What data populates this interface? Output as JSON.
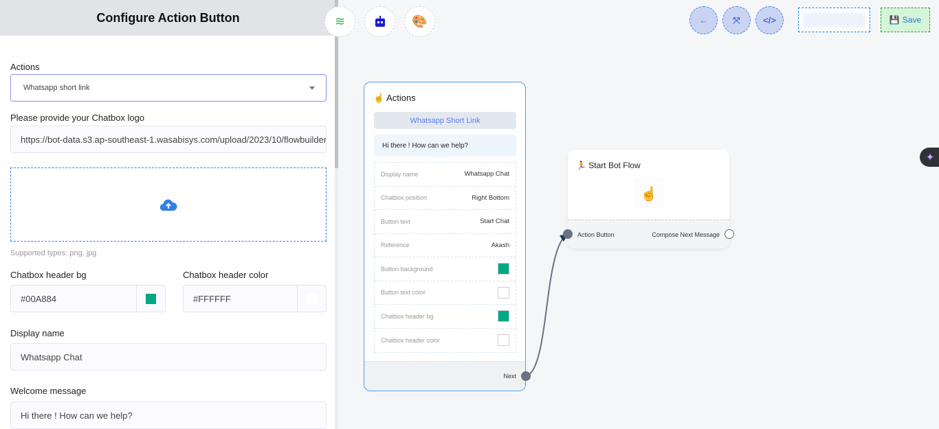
{
  "panel": {
    "title": "Configure Action Button",
    "actions_label": "Actions",
    "actions_value": "Whatsapp short link",
    "logo_label": "Please provide your Chatbox logo",
    "logo_value": "https://bot-data.s3.ap-southeast-1.wasabisys.com/upload/2023/10/flowbuilder",
    "supported": "Supported types: png, jpg",
    "header_bg_label": "Chatbox header bg",
    "header_bg_value": "#00A884",
    "header_color_label": "Chatbox header color",
    "header_color_value": "#FFFFFF",
    "display_name_label": "Display name",
    "display_name_value": "Whatsapp Chat",
    "welcome_label": "Welcome message",
    "welcome_value": "Hi there ! How can we help?"
  },
  "toolbar": {
    "save_label": "Save",
    "icons": [
      "lines-icon",
      "robot-icon",
      "palette-icon",
      "arrow-left-icon",
      "compress-icon",
      "code-icon"
    ]
  },
  "action_node": {
    "title": "Actions",
    "badge": "Whatsapp Short Link",
    "message": "Hi there ! How can we help?",
    "rows": [
      {
        "key": "Display name",
        "value": "Whatsapp Chat"
      },
      {
        "key": "Chatbox position",
        "value": "Right Bottom"
      },
      {
        "key": "Button text",
        "value": "Start Chat"
      },
      {
        "key": "Reference",
        "value": "Akash"
      },
      {
        "key": "Button background",
        "color": "#00A884"
      },
      {
        "key": "Button text color",
        "color": "#FFFFFF"
      },
      {
        "key": "Chatbox header bg",
        "color": "#00A884"
      },
      {
        "key": "Chatbox header color",
        "color": "#FFFFFF"
      }
    ],
    "next": "Next"
  },
  "start_node": {
    "title": "Start Bot Flow",
    "input": "Action Button",
    "output": "Compose Next Message"
  },
  "colors": {
    "accent": "#2f80ed",
    "teal": "#00A884"
  }
}
